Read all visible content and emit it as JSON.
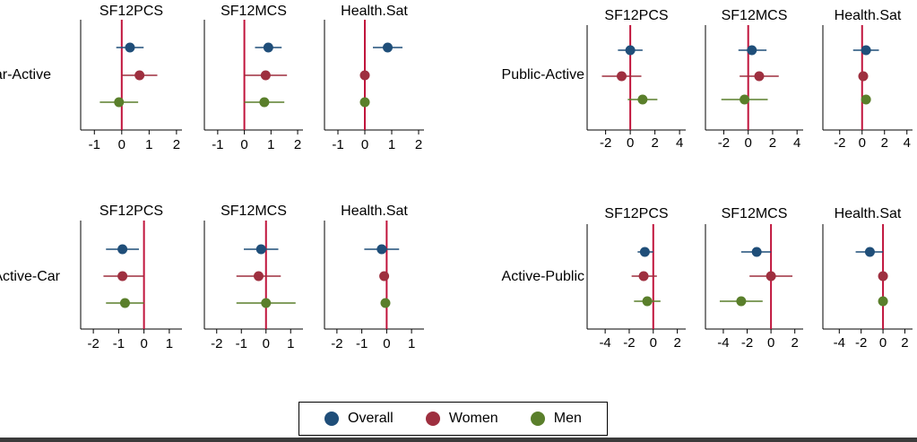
{
  "legend": [
    {
      "label": "Overall",
      "color": "#1f4e79"
    },
    {
      "label": "Women",
      "color": "#9e2f3f"
    },
    {
      "label": "Men",
      "color": "#5a7f2b"
    }
  ],
  "colors": {
    "zero_line": "#c0143c",
    "axis": "#000000"
  },
  "chart_data": [
    {
      "type": "scatter",
      "title": "Car-Active",
      "panels": [
        {
          "title": "SF12PCS",
          "xlim": [
            -1.5,
            2.2
          ],
          "ticks": [
            -1,
            0,
            1,
            2
          ],
          "series": [
            {
              "name": "Overall",
              "estimate": 0.3,
              "ci": [
                -0.2,
                0.8
              ]
            },
            {
              "name": "Women",
              "estimate": 0.65,
              "ci": [
                0.0,
                1.3
              ]
            },
            {
              "name": "Men",
              "estimate": -0.1,
              "ci": [
                -0.8,
                0.6
              ]
            }
          ]
        },
        {
          "title": "SF12MCS",
          "xlim": [
            -1.5,
            2.2
          ],
          "ticks": [
            -1,
            0,
            1,
            2
          ],
          "series": [
            {
              "name": "Overall",
              "estimate": 0.9,
              "ci": [
                0.4,
                1.4
              ]
            },
            {
              "name": "Women",
              "estimate": 0.8,
              "ci": [
                0.0,
                1.6
              ]
            },
            {
              "name": "Men",
              "estimate": 0.75,
              "ci": [
                0.0,
                1.5
              ]
            }
          ]
        },
        {
          "title": "Health.Sat",
          "xlim": [
            -1.5,
            2.2
          ],
          "ticks": [
            -1,
            0,
            1,
            2
          ],
          "series": [
            {
              "name": "Overall",
              "estimate": 0.85,
              "ci": [
                0.3,
                1.4
              ]
            },
            {
              "name": "Women",
              "estimate": 0.0,
              "ci": [
                -0.05,
                0.05
              ]
            },
            {
              "name": "Men",
              "estimate": 0.0,
              "ci": [
                -0.05,
                0.05
              ]
            }
          ]
        }
      ]
    },
    {
      "type": "scatter",
      "title": "Public-Active",
      "panels": [
        {
          "title": "SF12PCS",
          "xlim": [
            -3.5,
            4.5
          ],
          "ticks": [
            -2,
            0,
            2,
            4
          ],
          "series": [
            {
              "name": "Overall",
              "estimate": 0.0,
              "ci": [
                -1.0,
                1.0
              ]
            },
            {
              "name": "Women",
              "estimate": -0.7,
              "ci": [
                -2.3,
                0.9
              ]
            },
            {
              "name": "Men",
              "estimate": 1.0,
              "ci": [
                -0.2,
                2.2
              ]
            }
          ]
        },
        {
          "title": "SF12MCS",
          "xlim": [
            -3.5,
            4.5
          ],
          "ticks": [
            -2,
            0,
            2,
            4
          ],
          "series": [
            {
              "name": "Overall",
              "estimate": 0.3,
              "ci": [
                -0.8,
                1.5
              ]
            },
            {
              "name": "Women",
              "estimate": 0.9,
              "ci": [
                -0.7,
                2.5
              ]
            },
            {
              "name": "Men",
              "estimate": -0.3,
              "ci": [
                -2.2,
                1.6
              ]
            }
          ]
        },
        {
          "title": "Health.Sat",
          "xlim": [
            -3.5,
            4.5
          ],
          "ticks": [
            -2,
            0,
            2,
            4
          ],
          "series": [
            {
              "name": "Overall",
              "estimate": 0.35,
              "ci": [
                -0.8,
                1.5
              ]
            },
            {
              "name": "Women",
              "estimate": 0.1,
              "ci": [
                0.0,
                0.2
              ]
            },
            {
              "name": "Men",
              "estimate": 0.35,
              "ci": [
                0.2,
                0.5
              ]
            }
          ]
        }
      ]
    },
    {
      "type": "scatter",
      "title": "Active-Car",
      "panels": [
        {
          "title": "SF12PCS",
          "xlim": [
            -2.5,
            1.5
          ],
          "ticks": [
            -2,
            -1,
            0,
            1
          ],
          "series": [
            {
              "name": "Overall",
              "estimate": -0.85,
              "ci": [
                -1.5,
                -0.2
              ]
            },
            {
              "name": "Women",
              "estimate": -0.85,
              "ci": [
                -1.6,
                0.0
              ]
            },
            {
              "name": "Men",
              "estimate": -0.75,
              "ci": [
                -1.5,
                0.0
              ]
            }
          ]
        },
        {
          "title": "SF12MCS",
          "xlim": [
            -2.5,
            1.5
          ],
          "ticks": [
            -2,
            -1,
            0,
            1
          ],
          "series": [
            {
              "name": "Overall",
              "estimate": -0.2,
              "ci": [
                -0.9,
                0.5
              ]
            },
            {
              "name": "Women",
              "estimate": -0.3,
              "ci": [
                -1.2,
                0.6
              ]
            },
            {
              "name": "Men",
              "estimate": 0.0,
              "ci": [
                -1.2,
                1.2
              ]
            }
          ]
        },
        {
          "title": "Health.Sat",
          "xlim": [
            -2.5,
            1.5
          ],
          "ticks": [
            -2,
            -1,
            0,
            1
          ],
          "series": [
            {
              "name": "Overall",
              "estimate": -0.2,
              "ci": [
                -0.9,
                0.5
              ]
            },
            {
              "name": "Women",
              "estimate": -0.1,
              "ci": [
                -0.2,
                0.0
              ]
            },
            {
              "name": "Men",
              "estimate": -0.05,
              "ci": [
                -0.15,
                0.05
              ]
            }
          ]
        }
      ]
    },
    {
      "type": "scatter",
      "title": "Active-Public",
      "panels": [
        {
          "title": "SF12PCS",
          "xlim": [
            -5.5,
            2.7
          ],
          "ticks": [
            -4,
            -2,
            0,
            2
          ],
          "series": [
            {
              "name": "Overall",
              "estimate": -0.7,
              "ci": [
                -1.3,
                0.0
              ]
            },
            {
              "name": "Women",
              "estimate": -0.8,
              "ci": [
                -1.8,
                0.3
              ]
            },
            {
              "name": "Men",
              "estimate": -0.5,
              "ci": [
                -1.6,
                0.6
              ]
            }
          ]
        },
        {
          "title": "SF12MCS",
          "xlim": [
            -5.5,
            2.7
          ],
          "ticks": [
            -4,
            -2,
            0,
            2
          ],
          "series": [
            {
              "name": "Overall",
              "estimate": -1.2,
              "ci": [
                -2.5,
                0.0
              ]
            },
            {
              "name": "Women",
              "estimate": 0.0,
              "ci": [
                -1.8,
                1.8
              ]
            },
            {
              "name": "Men",
              "estimate": -2.5,
              "ci": [
                -4.3,
                -0.7
              ]
            }
          ]
        },
        {
          "title": "Health.Sat",
          "xlim": [
            -5.5,
            2.7
          ],
          "ticks": [
            -4,
            -2,
            0,
            2
          ],
          "series": [
            {
              "name": "Overall",
              "estimate": -1.2,
              "ci": [
                -2.5,
                0.0
              ]
            },
            {
              "name": "Women",
              "estimate": 0.0,
              "ci": [
                -0.1,
                0.1
              ]
            },
            {
              "name": "Men",
              "estimate": 0.0,
              "ci": [
                -0.1,
                0.1
              ]
            }
          ]
        }
      ]
    }
  ]
}
